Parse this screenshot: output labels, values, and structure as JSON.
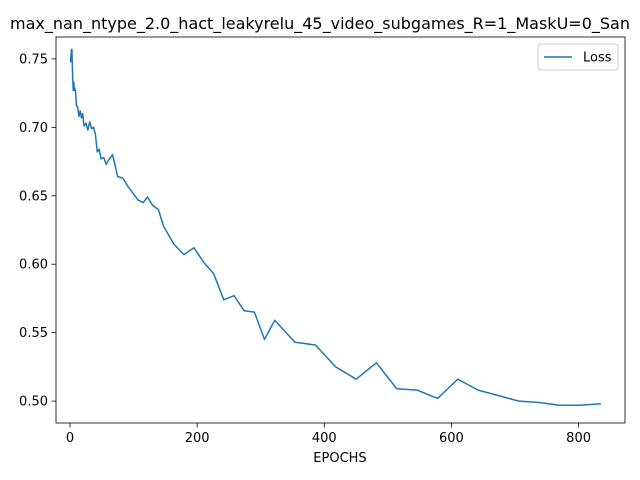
{
  "chart_data": {
    "type": "line",
    "title": "max_nan_ntype_2.0_hact_leakyrelu_45_video_subgames_R=1_MaskU=0_San",
    "xlabel": "EPOCHS",
    "ylabel": "",
    "xlim": [
      -22,
      873
    ],
    "ylim": [
      0.484,
      0.766
    ],
    "xticks": [
      0,
      200,
      400,
      600,
      800
    ],
    "xtick_labels": [
      "0",
      "200",
      "400",
      "600",
      "800"
    ],
    "yticks": [
      0.5,
      0.55,
      0.6,
      0.65,
      0.7,
      0.75
    ],
    "ytick_labels": [
      "0.50",
      "0.55",
      "0.60",
      "0.65",
      "0.70",
      "0.75"
    ],
    "grid": false,
    "legend_position": "top-right",
    "series": [
      {
        "name": "Loss",
        "color": "#1f77b4",
        "x": [
          1,
          2,
          3,
          4,
          5,
          6,
          7,
          8,
          9,
          10,
          12,
          14,
          16,
          18,
          20,
          22,
          25,
          28,
          31,
          34,
          37,
          40,
          43,
          46,
          49,
          53,
          57,
          62,
          67,
          75,
          83,
          91,
          107,
          115,
          122,
          130,
          139,
          147,
          163,
          179,
          195,
          211,
          226,
          242,
          258,
          274,
          290,
          306,
          322,
          354,
          386,
          418,
          450,
          482,
          514,
          546,
          578,
          610,
          642,
          674,
          706,
          738,
          770,
          802,
          834
        ],
        "y": [
          0.748,
          0.756,
          0.757,
          0.741,
          0.727,
          0.733,
          0.727,
          0.728,
          0.725,
          0.716,
          0.715,
          0.708,
          0.712,
          0.707,
          0.71,
          0.701,
          0.703,
          0.698,
          0.704,
          0.699,
          0.7,
          0.695,
          0.682,
          0.684,
          0.677,
          0.678,
          0.673,
          0.677,
          0.68,
          0.664,
          0.663,
          0.657,
          0.647,
          0.645,
          0.649,
          0.643,
          0.64,
          0.628,
          0.615,
          0.607,
          0.612,
          0.601,
          0.593,
          0.574,
          0.577,
          0.566,
          0.565,
          0.545,
          0.559,
          0.543,
          0.541,
          0.525,
          0.516,
          0.528,
          0.509,
          0.508,
          0.502,
          0.516,
          0.508,
          0.504,
          0.5,
          0.499,
          0.497,
          0.497,
          0.498
        ]
      }
    ]
  }
}
